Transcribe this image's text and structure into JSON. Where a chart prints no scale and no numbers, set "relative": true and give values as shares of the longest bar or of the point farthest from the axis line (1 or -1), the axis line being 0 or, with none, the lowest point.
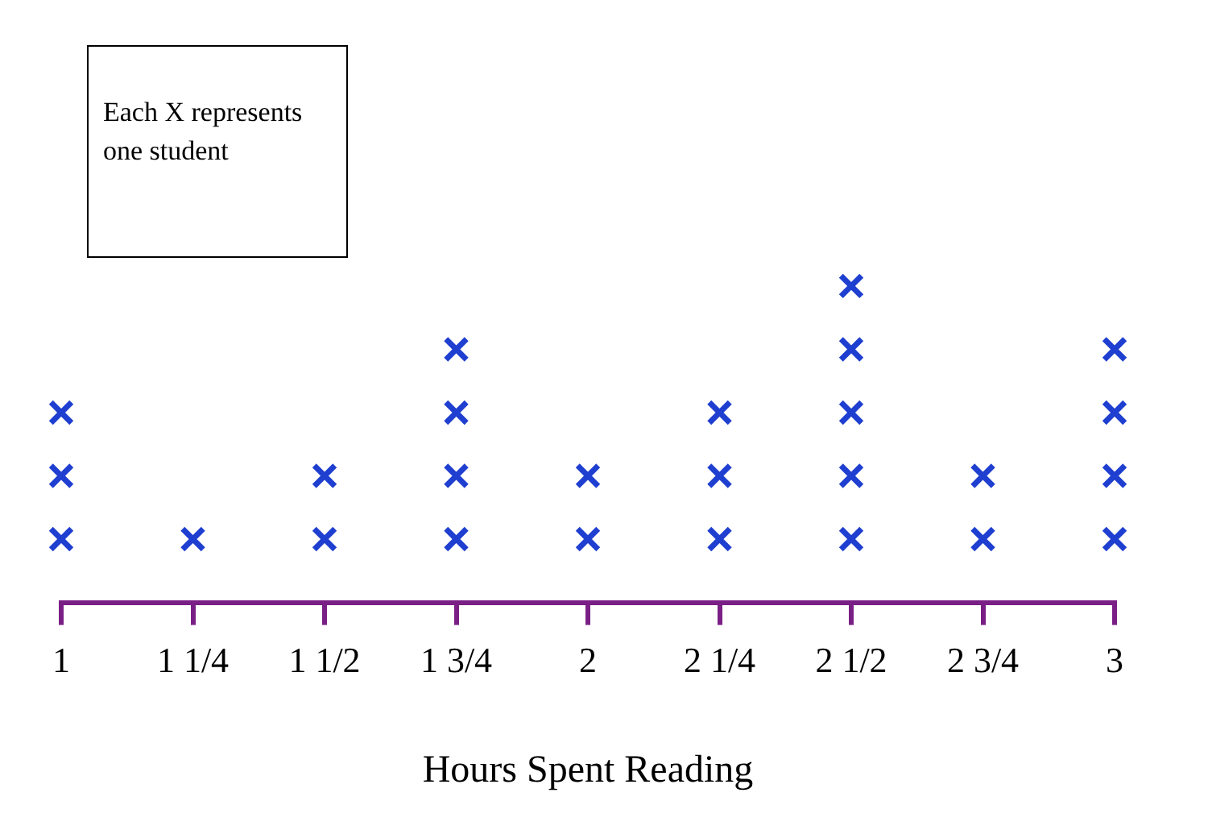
{
  "chart_data": {
    "type": "scatter",
    "xlabel": "Hours Spent Reading",
    "annotations": [
      "Each X represents one student"
    ],
    "series": [
      {
        "color": "#1f3fd0",
        "x": [
          1,
          1,
          1,
          1.25,
          1.5,
          1.5,
          1.75,
          1.75,
          1.75,
          1.75,
          2,
          2,
          2.25,
          2.25,
          2.25,
          2.5,
          2.5,
          2.5,
          2.5,
          2.5,
          2.75,
          2.75,
          3,
          3,
          3,
          3
        ],
        "values": [
          0.2,
          0.4,
          0.6,
          0.2,
          0.2,
          0.4,
          0.2,
          0.4,
          0.6,
          0.8,
          0.2,
          0.4,
          0.2,
          0.4,
          0.6,
          0.2,
          0.4,
          0.6,
          0.8,
          1,
          0.2,
          0.4,
          0.2,
          0.4,
          0.6,
          0.8
        ]
      }
    ],
    "relative": true,
    "xlim": [
      1,
      3
    ],
    "xticks": [
      1,
      {
        "value": 1.25,
        "label": "1 1/4"
      },
      {
        "value": 1.5,
        "label": "1 1/2"
      },
      {
        "value": 1.75,
        "label": "1 3/4"
      },
      2,
      {
        "value": 2.25,
        "label": "2 1/4"
      },
      {
        "value": 2.5,
        "label": "2 1/2"
      },
      {
        "value": 2.75,
        "label": "2 3/4"
      },
      3
    ],
    "tick_labels": "x",
    "grid": false,
    "legend": false,
    "marker": "cross"
  }
}
